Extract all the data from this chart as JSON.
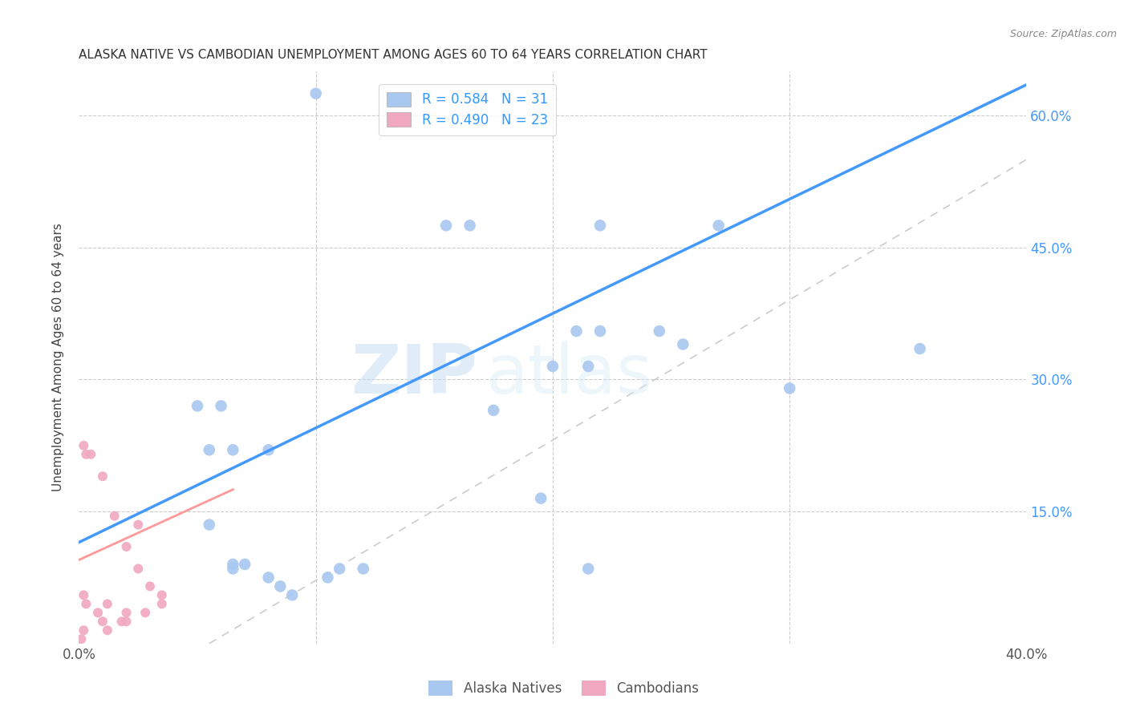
{
  "title": "ALASKA NATIVE VS CAMBODIAN UNEMPLOYMENT AMONG AGES 60 TO 64 YEARS CORRELATION CHART",
  "source": "Source: ZipAtlas.com",
  "ylabel": "Unemployment Among Ages 60 to 64 years",
  "xlim": [
    0.0,
    0.4
  ],
  "ylim": [
    0.0,
    0.65
  ],
  "y_ticks": [
    0.0,
    0.15,
    0.3,
    0.45,
    0.6
  ],
  "y_tick_labels": [
    "",
    "15.0%",
    "30.0%",
    "45.0%",
    "60.0%"
  ],
  "alaska_R": 0.584,
  "alaska_N": 31,
  "cambodian_R": 0.49,
  "cambodian_N": 23,
  "alaska_color": "#a8c8f0",
  "cambodian_color": "#f0a8c0",
  "alaska_line_color": "#4499ff",
  "cambodian_line_color": "#ff9999",
  "watermark_zip": "ZIP",
  "watermark_atlas": "atlas",
  "alaska_scatter_x": [
    0.1,
    0.155,
    0.165,
    0.22,
    0.27,
    0.05,
    0.06,
    0.055,
    0.065,
    0.08,
    0.065,
    0.07,
    0.175,
    0.2,
    0.215,
    0.21,
    0.245,
    0.255,
    0.3,
    0.355,
    0.22,
    0.195,
    0.215,
    0.065,
    0.08,
    0.085,
    0.09,
    0.105,
    0.11,
    0.12,
    0.055
  ],
  "alaska_scatter_y": [
    0.625,
    0.475,
    0.475,
    0.475,
    0.475,
    0.27,
    0.27,
    0.22,
    0.22,
    0.22,
    0.09,
    0.09,
    0.265,
    0.315,
    0.315,
    0.355,
    0.355,
    0.34,
    0.29,
    0.335,
    0.355,
    0.165,
    0.085,
    0.085,
    0.075,
    0.065,
    0.055,
    0.075,
    0.085,
    0.085,
    0.135
  ],
  "cambodian_scatter_x": [
    0.005,
    0.01,
    0.015,
    0.02,
    0.025,
    0.025,
    0.03,
    0.035,
    0.035,
    0.002,
    0.003,
    0.008,
    0.01,
    0.012,
    0.018,
    0.02,
    0.002,
    0.003,
    0.012,
    0.02,
    0.028,
    0.001,
    0.002
  ],
  "cambodian_scatter_y": [
    0.215,
    0.19,
    0.145,
    0.11,
    0.135,
    0.085,
    0.065,
    0.055,
    0.045,
    0.055,
    0.045,
    0.035,
    0.025,
    0.015,
    0.025,
    0.025,
    0.225,
    0.215,
    0.045,
    0.035,
    0.035,
    0.005,
    0.015
  ],
  "alaska_trendline_x": [
    0.0,
    0.4
  ],
  "alaska_trendline_y": [
    0.115,
    0.635
  ],
  "cambodian_trendline_x": [
    0.0,
    0.065
  ],
  "cambodian_trendline_y": [
    0.095,
    0.175
  ],
  "ref_line_x": [
    0.055,
    0.4
  ],
  "ref_line_y": [
    0.0,
    0.55
  ]
}
